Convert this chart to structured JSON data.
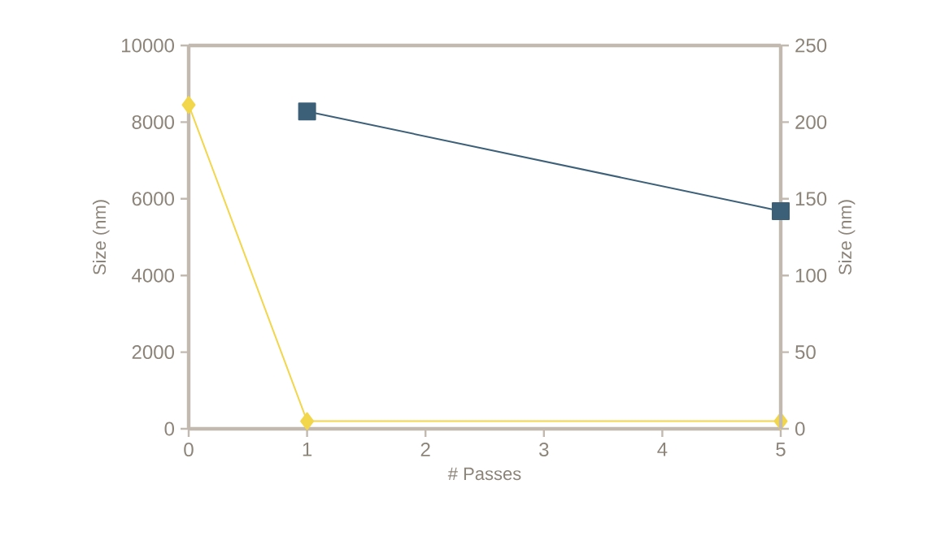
{
  "chart_data": {
    "type": "line",
    "xlabel": "# Passes",
    "ylabel": "Size (nm)",
    "y2label": "Size (nm)",
    "x": [
      0,
      1,
      5
    ],
    "series": [
      {
        "color": "#f2d64b",
        "values": [
          8450,
          200,
          200
        ],
        "marker": "diamond"
      },
      {
        "color": "#3d6079",
        "x": [
          1,
          5
        ],
        "values": [
          207,
          142
        ],
        "axis": "y2",
        "marker": "square"
      }
    ],
    "xlim": [
      0,
      5
    ],
    "xticks": [
      0,
      1,
      2,
      3,
      4,
      5
    ],
    "ylim": [
      0,
      10000
    ],
    "yticks": [
      0,
      2000,
      4000,
      6000,
      8000,
      10000
    ],
    "y2lim": [
      0,
      250
    ],
    "y2ticks": [
      0,
      50,
      100,
      150,
      200,
      250
    ],
    "grid": false,
    "legend": false,
    "line_style": "solid"
  }
}
